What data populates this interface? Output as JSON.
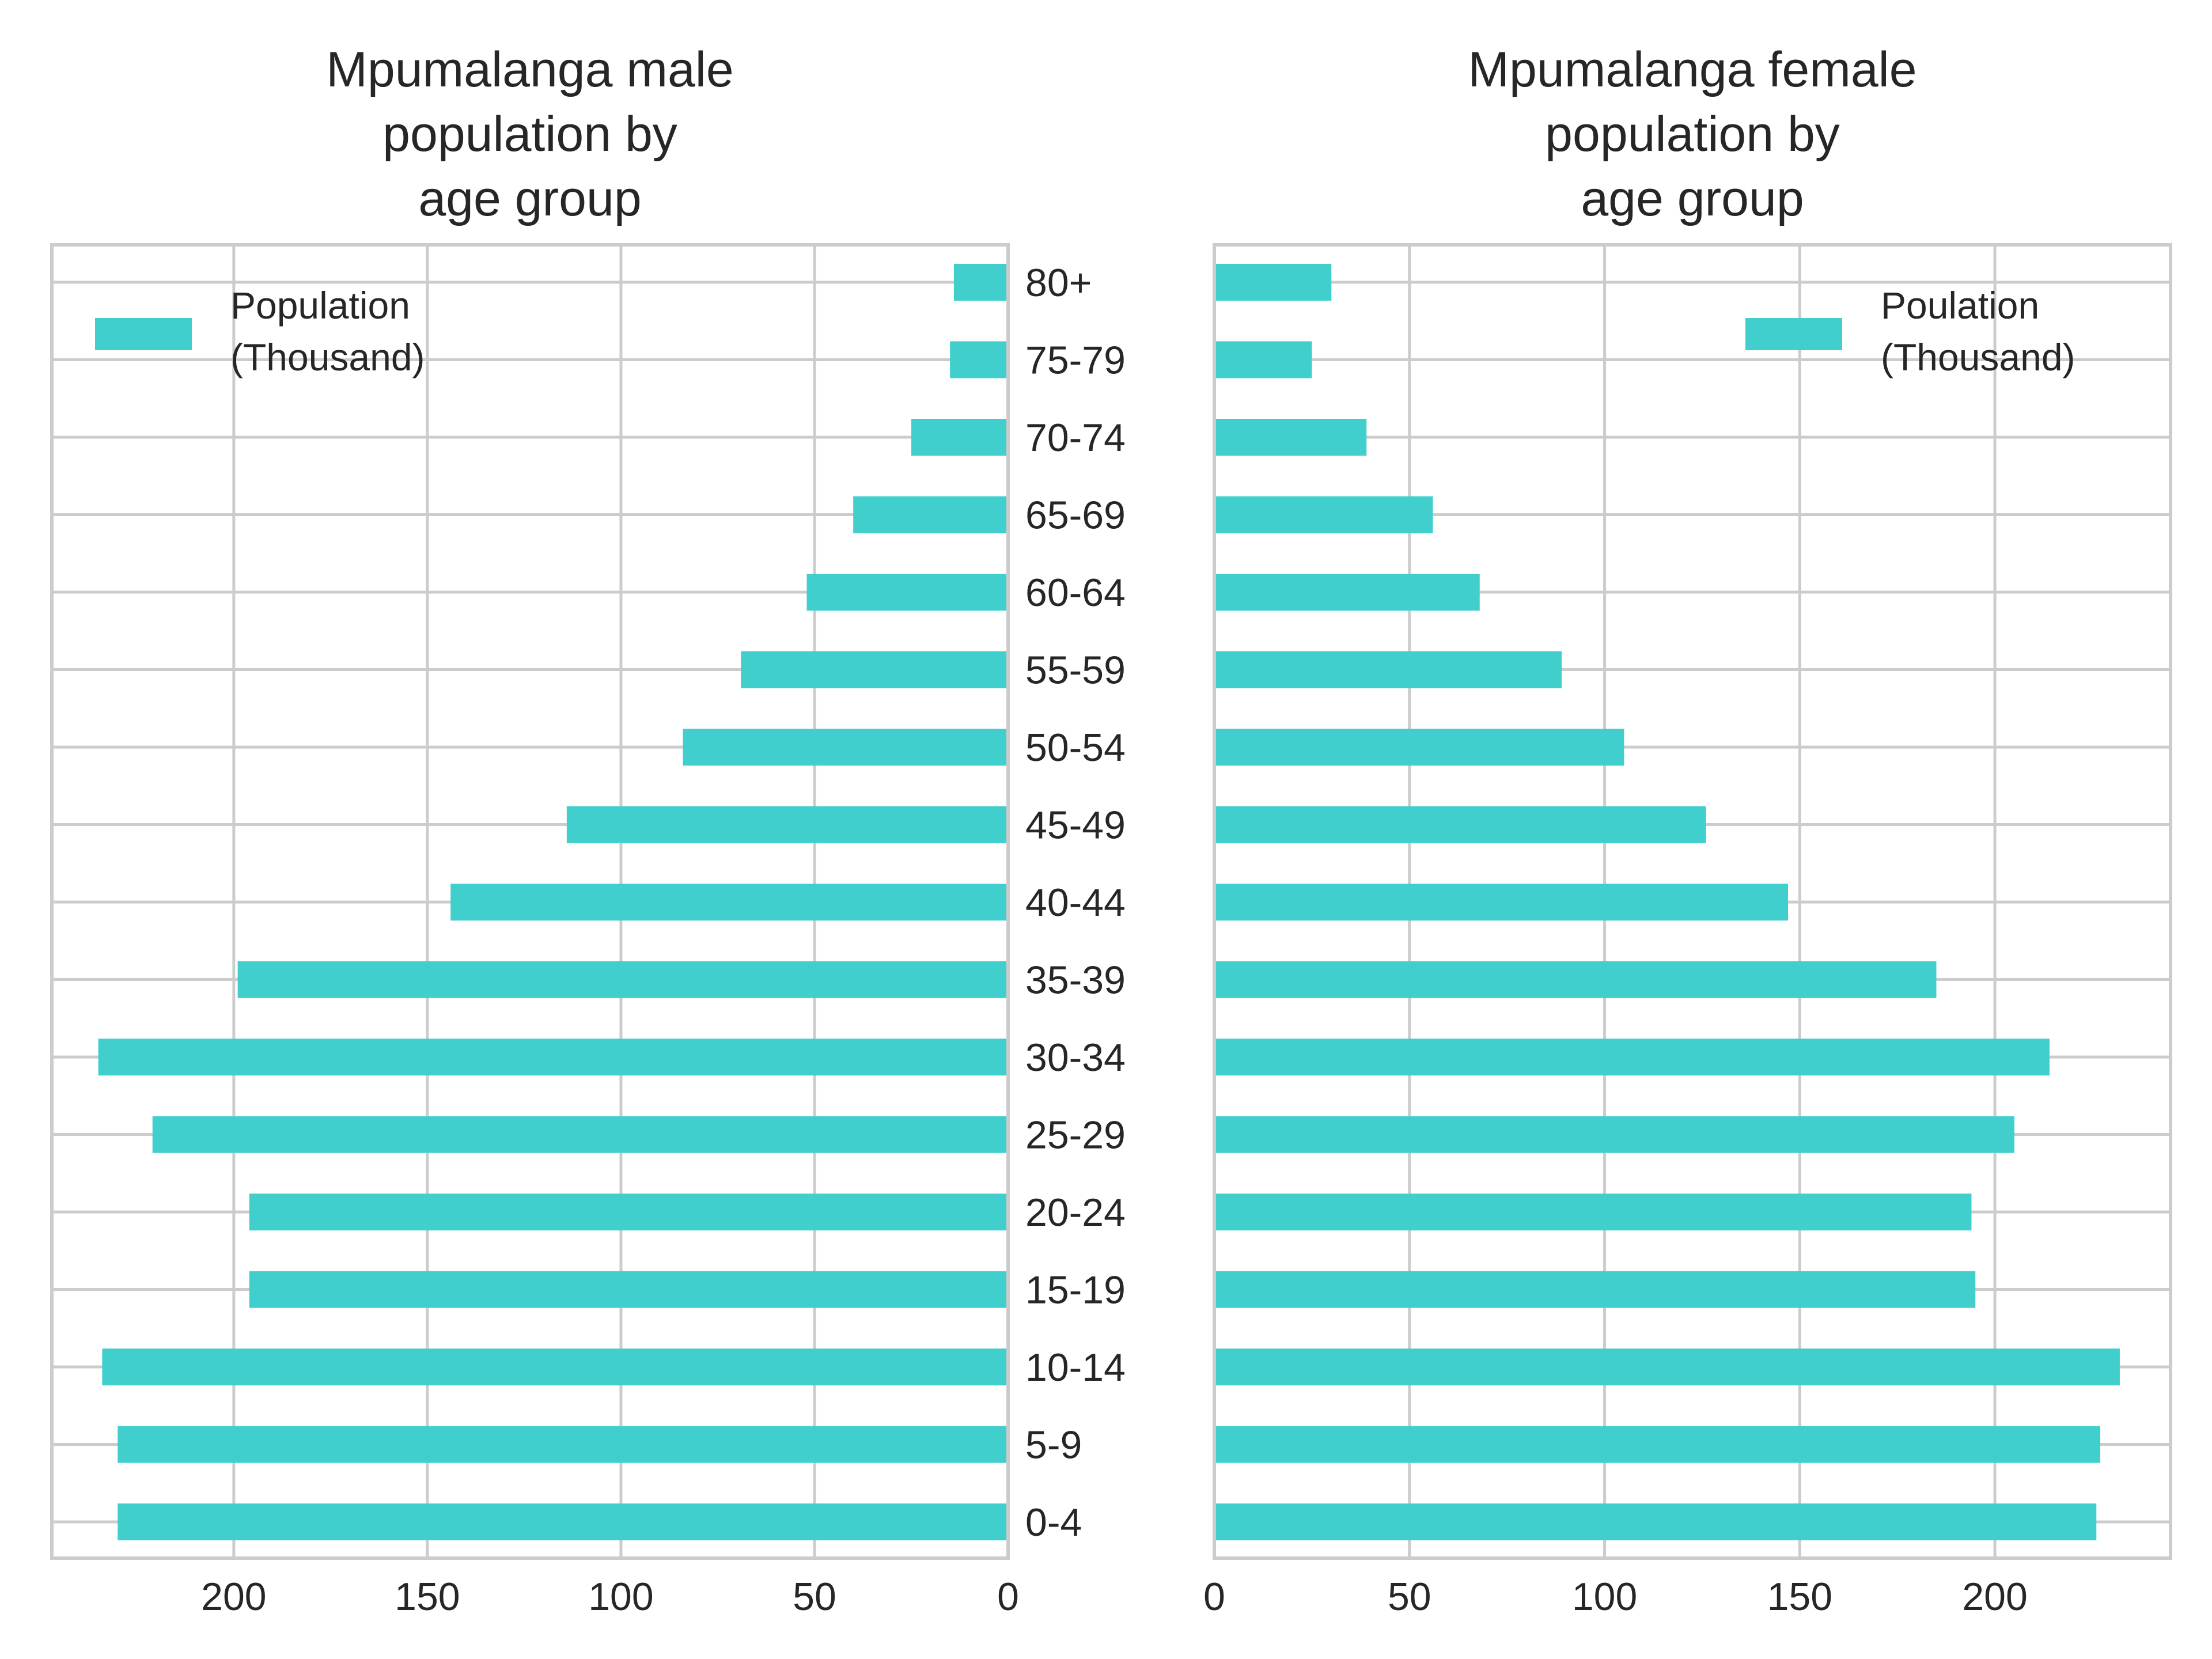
{
  "chart_data": [
    {
      "type": "bar",
      "orientation": "horizontal",
      "direction": "reversed",
      "title_lines": [
        "Mpumalanga male",
        "population by",
        "age group"
      ],
      "categories": [
        "0-4",
        "5-9",
        "10-14",
        "15-19",
        "20-24",
        "25-29",
        "30-34",
        "35-39",
        "40-44",
        "45-49",
        "50-54",
        "55-59",
        "60-64",
        "65-69",
        "70-74",
        "75-79",
        "80+"
      ],
      "series": [
        {
          "name_lines": [
            "Population",
            "(Thousand)"
          ],
          "values": [
            230,
            230,
            234,
            196,
            196,
            221,
            235,
            199,
            144,
            114,
            84,
            69,
            52,
            40,
            25,
            15,
            14
          ],
          "color": "#40cfcd"
        }
      ],
      "xlim": [
        0,
        247
      ],
      "xticks": [
        "0",
        "50",
        "100",
        "150",
        "200"
      ],
      "grid": true,
      "legend_position": "top-left"
    },
    {
      "type": "bar",
      "orientation": "horizontal",
      "direction": "normal",
      "title_lines": [
        "Mpumalanga female",
        "population by",
        "age group"
      ],
      "categories": [
        "0-4",
        "5-9",
        "10-14",
        "15-19",
        "20-24",
        "25-29",
        "30-34",
        "35-39",
        "40-44",
        "45-49",
        "50-54",
        "55-59",
        "60-64",
        "65-69",
        "70-74",
        "75-79",
        "80+"
      ],
      "series": [
        {
          "name_lines": [
            "Poulation",
            "(Thousand)"
          ],
          "values": [
            226,
            227,
            232,
            195,
            194,
            205,
            214,
            185,
            147,
            126,
            105,
            89,
            68,
            56,
            39,
            25,
            30
          ],
          "color": "#40cfcd"
        }
      ],
      "xlim": [
        0,
        245
      ],
      "xticks": [
        "0",
        "50",
        "100",
        "150",
        "200"
      ],
      "grid": true,
      "legend_position": "top-right"
    }
  ]
}
